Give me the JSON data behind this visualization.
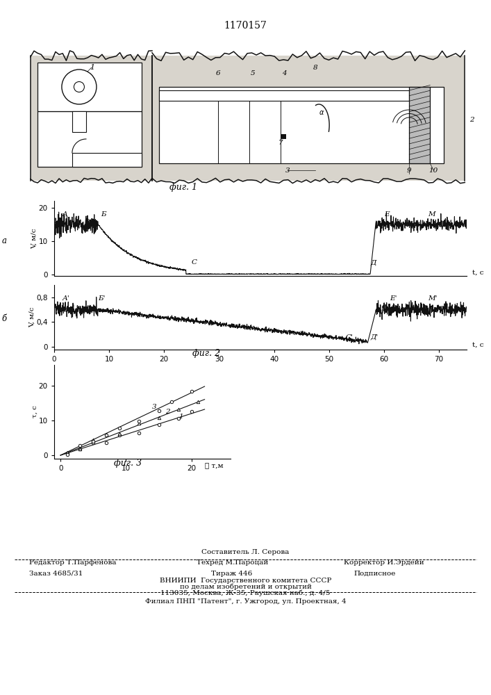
{
  "patent_number": "1170157",
  "fig1_caption": "фиг. 1",
  "fig2_caption": "фиг. 2",
  "fig3_caption": "фиг. 3",
  "line_color": "#111111",
  "bg_color": "#d8d4cc",
  "footer_editor": "Редактор Т.Парфенова",
  "footer_sostavitel": "Составитель Л. Серова",
  "footer_techred": "Техред М.Пароцай",
  "footer_corrector": "Корректор И.Эрдейи",
  "footer_order": "Заказ 4685/31",
  "footer_tirazh": "Тираж 446",
  "footer_podpisnoe": "Подписное",
  "footer_vniip": "ВНИИПИ  Государственного комитета СССР",
  "footer_po_delam": "по делам изобретений и открытий",
  "footer_addr": "113035, Москва, Ж-35, Раушская наб., д. 4/5",
  "footer_filial": "Филиал ПНП \"Патент\", г. Ужгород, ул. Проектная, 4"
}
